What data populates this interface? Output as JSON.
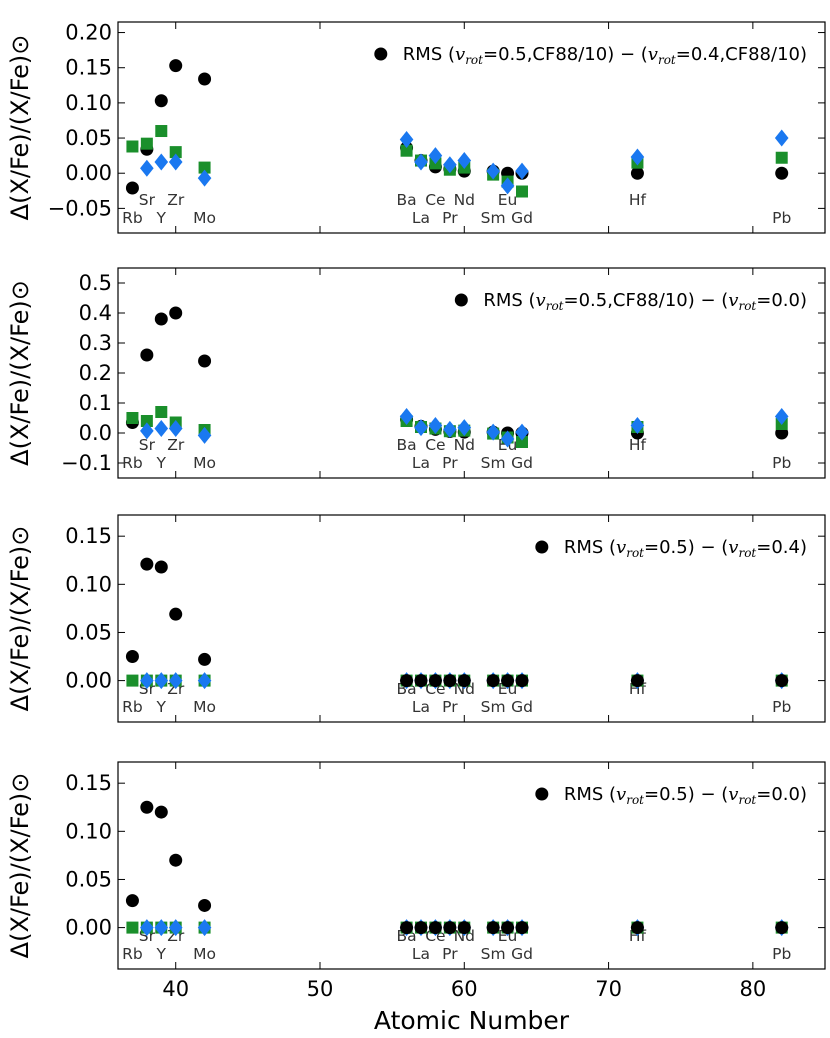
{
  "colors": {
    "circle": "#000000",
    "square": "#1a8f2b",
    "diamond": "#1a78f0"
  },
  "chart_data": {
    "type": "scatter",
    "xlabel": "Atomic Number",
    "ylabel": "Δ(X/Fe)/(X/Fe)⊙",
    "xlim": [
      36,
      85
    ],
    "xticks": [
      40,
      50,
      60,
      70,
      80
    ],
    "panels": [
      {
        "legend": {
          "prefix": "RMS (",
          "a": "=0.5,CF88/10) − (",
          "b": "=0.4,CF88/10)"
        },
        "ylim": [
          -0.085,
          0.215
        ],
        "yticks": [
          -0.05,
          0.0,
          0.05,
          0.1,
          0.15,
          0.2
        ],
        "ytick_labels": [
          "−0.05",
          "0.00",
          "0.05",
          "0.10",
          "0.15",
          "0.20"
        ],
        "series": [
          {
            "name": "circle",
            "marker": "circle",
            "points": [
              [
                37,
                -0.021
              ],
              [
                38,
                0.034
              ],
              [
                39,
                0.103
              ],
              [
                40,
                0.153
              ],
              [
                42,
                0.134
              ],
              [
                56,
                0.036
              ],
              [
                57,
                0.018
              ],
              [
                58,
                0.009
              ],
              [
                59,
                0.006
              ],
              [
                60,
                0.003
              ],
              [
                62,
                0.003
              ],
              [
                63,
                0.0
              ],
              [
                64,
                0.0
              ],
              [
                72,
                0.0
              ],
              [
                82,
                0.0
              ]
            ]
          },
          {
            "name": "square",
            "marker": "square",
            "points": [
              [
                37,
                0.038
              ],
              [
                38,
                0.042
              ],
              [
                39,
                0.06
              ],
              [
                40,
                0.03
              ],
              [
                42,
                0.008
              ],
              [
                56,
                0.032
              ],
              [
                57,
                0.018
              ],
              [
                58,
                0.014
              ],
              [
                59,
                0.005
              ],
              [
                60,
                0.008
              ],
              [
                62,
                -0.002
              ],
              [
                63,
                -0.012
              ],
              [
                64,
                -0.026
              ],
              [
                72,
                0.015
              ],
              [
                82,
                0.022
              ]
            ]
          },
          {
            "name": "diamond",
            "marker": "diamond",
            "points": [
              [
                38,
                0.007
              ],
              [
                39,
                0.016
              ],
              [
                40,
                0.016
              ],
              [
                42,
                -0.007
              ],
              [
                56,
                0.048
              ],
              [
                57,
                0.016
              ],
              [
                58,
                0.025
              ],
              [
                59,
                0.012
              ],
              [
                60,
                0.018
              ],
              [
                62,
                0.003
              ],
              [
                63,
                -0.018
              ],
              [
                64,
                0.003
              ],
              [
                72,
                0.023
              ],
              [
                82,
                0.05
              ]
            ]
          }
        ]
      },
      {
        "legend": {
          "prefix": "RMS (",
          "a": "=0.5,CF88/10) − (",
          "b": "=0.0)"
        },
        "ylim": [
          -0.15,
          0.55
        ],
        "yticks": [
          -0.1,
          0.0,
          0.1,
          0.2,
          0.3,
          0.4,
          0.5
        ],
        "ytick_labels": [
          "−0.1",
          "0.0",
          "0.1",
          "0.2",
          "0.3",
          "0.4",
          "0.5"
        ],
        "series": [
          {
            "name": "circle",
            "marker": "circle",
            "points": [
              [
                37,
                0.035
              ],
              [
                38,
                0.26
              ],
              [
                39,
                0.38
              ],
              [
                40,
                0.4
              ],
              [
                42,
                0.24
              ],
              [
                56,
                0.045
              ],
              [
                57,
                0.022
              ],
              [
                58,
                0.012
              ],
              [
                59,
                0.005
              ],
              [
                60,
                0.003
              ],
              [
                62,
                0.003
              ],
              [
                63,
                0.0
              ],
              [
                64,
                0.0
              ],
              [
                72,
                0.0
              ],
              [
                82,
                0.0
              ]
            ]
          },
          {
            "name": "square",
            "marker": "square",
            "points": [
              [
                37,
                0.05
              ],
              [
                38,
                0.04
              ],
              [
                39,
                0.07
              ],
              [
                40,
                0.035
              ],
              [
                42,
                0.01
              ],
              [
                56,
                0.04
              ],
              [
                57,
                0.02
              ],
              [
                58,
                0.015
              ],
              [
                59,
                0.006
              ],
              [
                60,
                0.008
              ],
              [
                62,
                -0.002
              ],
              [
                63,
                -0.015
              ],
              [
                64,
                -0.03
              ],
              [
                72,
                0.02
              ],
              [
                82,
                0.03
              ]
            ]
          },
          {
            "name": "diamond",
            "marker": "diamond",
            "points": [
              [
                38,
                0.007
              ],
              [
                39,
                0.015
              ],
              [
                40,
                0.015
              ],
              [
                42,
                -0.008
              ],
              [
                56,
                0.055
              ],
              [
                57,
                0.018
              ],
              [
                58,
                0.025
              ],
              [
                59,
                0.012
              ],
              [
                60,
                0.018
              ],
              [
                62,
                0.003
              ],
              [
                63,
                -0.02
              ],
              [
                64,
                0.003
              ],
              [
                72,
                0.025
              ],
              [
                82,
                0.055
              ]
            ]
          }
        ]
      },
      {
        "legend": {
          "prefix": "RMS (",
          "a": "=0.5) − (",
          "b": "=0.4)"
        },
        "ylim": [
          -0.043,
          0.172
        ],
        "yticks": [
          0.0,
          0.05,
          0.1,
          0.15
        ],
        "ytick_labels": [
          "0.00",
          "0.05",
          "0.10",
          "0.15"
        ],
        "series": [
          {
            "name": "square",
            "marker": "square",
            "points": [
              [
                37,
                0
              ],
              [
                38,
                0
              ],
              [
                39,
                0
              ],
              [
                40,
                0
              ],
              [
                42,
                0
              ],
              [
                56,
                0
              ],
              [
                57,
                0
              ],
              [
                58,
                0
              ],
              [
                59,
                0
              ],
              [
                60,
                0
              ],
              [
                62,
                0
              ],
              [
                63,
                0
              ],
              [
                64,
                0
              ],
              [
                72,
                0
              ],
              [
                82,
                0
              ]
            ]
          },
          {
            "name": "diamond",
            "marker": "diamond",
            "points": [
              [
                38,
                0
              ],
              [
                39,
                0
              ],
              [
                40,
                0
              ],
              [
                42,
                0
              ],
              [
                56,
                0
              ],
              [
                57,
                0
              ],
              [
                58,
                0
              ],
              [
                59,
                0
              ],
              [
                60,
                0
              ],
              [
                62,
                0
              ],
              [
                63,
                0
              ],
              [
                64,
                0
              ],
              [
                72,
                0
              ],
              [
                82,
                0
              ]
            ]
          },
          {
            "name": "circle",
            "marker": "circle",
            "points": [
              [
                37,
                0.025
              ],
              [
                38,
                0.121
              ],
              [
                39,
                0.118
              ],
              [
                40,
                0.069
              ],
              [
                42,
                0.022
              ],
              [
                56,
                0
              ],
              [
                57,
                0
              ],
              [
                58,
                0
              ],
              [
                59,
                0
              ],
              [
                60,
                0
              ],
              [
                62,
                0
              ],
              [
                63,
                0
              ],
              [
                64,
                0
              ],
              [
                72,
                0
              ],
              [
                82,
                0
              ]
            ]
          }
        ]
      },
      {
        "legend": {
          "prefix": "RMS (",
          "a": "=0.5) − (",
          "b": "=0.0)"
        },
        "ylim": [
          -0.043,
          0.172
        ],
        "yticks": [
          0.0,
          0.05,
          0.1,
          0.15
        ],
        "ytick_labels": [
          "0.00",
          "0.05",
          "0.10",
          "0.15"
        ],
        "series": [
          {
            "name": "square",
            "marker": "square",
            "points": [
              [
                37,
                0
              ],
              [
                38,
                0
              ],
              [
                39,
                0
              ],
              [
                40,
                0
              ],
              [
                42,
                0
              ],
              [
                56,
                0
              ],
              [
                57,
                0
              ],
              [
                58,
                0
              ],
              [
                59,
                0
              ],
              [
                60,
                0
              ],
              [
                62,
                0
              ],
              [
                63,
                0
              ],
              [
                64,
                0
              ],
              [
                72,
                0
              ],
              [
                82,
                0
              ]
            ]
          },
          {
            "name": "diamond",
            "marker": "diamond",
            "points": [
              [
                38,
                0
              ],
              [
                39,
                0
              ],
              [
                40,
                0
              ],
              [
                42,
                0
              ],
              [
                56,
                0
              ],
              [
                57,
                0
              ],
              [
                58,
                0
              ],
              [
                59,
                0
              ],
              [
                60,
                0
              ],
              [
                62,
                0
              ],
              [
                63,
                0
              ],
              [
                64,
                0
              ],
              [
                72,
                0
              ],
              [
                82,
                0
              ]
            ]
          },
          {
            "name": "circle",
            "marker": "circle",
            "points": [
              [
                37,
                0.028
              ],
              [
                38,
                0.125
              ],
              [
                39,
                0.12
              ],
              [
                40,
                0.07
              ],
              [
                42,
                0.023
              ],
              [
                56,
                0
              ],
              [
                57,
                0
              ],
              [
                58,
                0
              ],
              [
                59,
                0
              ],
              [
                60,
                0
              ],
              [
                62,
                0
              ],
              [
                63,
                0
              ],
              [
                64,
                0
              ],
              [
                72,
                0
              ],
              [
                82,
                0
              ]
            ]
          }
        ]
      }
    ],
    "element_labels": [
      {
        "text": "Rb",
        "z": 37,
        "row": "lower"
      },
      {
        "text": "Sr",
        "z": 38,
        "row": "upper"
      },
      {
        "text": "Y",
        "z": 39,
        "row": "lower"
      },
      {
        "text": "Zr",
        "z": 40,
        "row": "upper"
      },
      {
        "text": "Mo",
        "z": 42,
        "row": "lower"
      },
      {
        "text": "Ba",
        "z": 56,
        "row": "upper"
      },
      {
        "text": "La",
        "z": 57,
        "row": "lower"
      },
      {
        "text": "Ce",
        "z": 58,
        "row": "upper"
      },
      {
        "text": "Pr",
        "z": 59,
        "row": "lower"
      },
      {
        "text": "Nd",
        "z": 60,
        "row": "upper"
      },
      {
        "text": "Sm",
        "z": 62,
        "row": "lower"
      },
      {
        "text": "Eu",
        "z": 63,
        "row": "upper"
      },
      {
        "text": "Gd",
        "z": 64,
        "row": "lower"
      },
      {
        "text": "Hf",
        "z": 72,
        "row": "upper"
      },
      {
        "text": "Pb",
        "z": 82,
        "row": "lower"
      }
    ]
  }
}
